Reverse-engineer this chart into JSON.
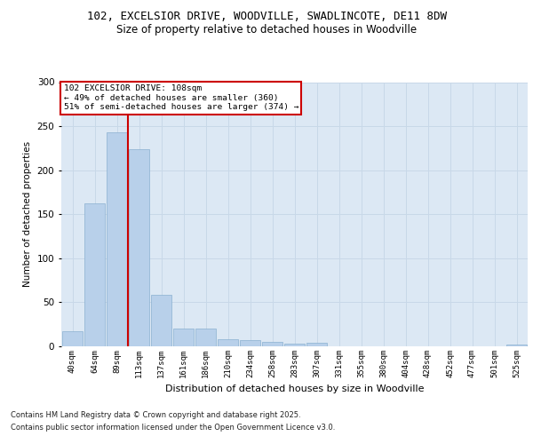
{
  "title_line1": "102, EXCELSIOR DRIVE, WOODVILLE, SWADLINCOTE, DE11 8DW",
  "title_line2": "Size of property relative to detached houses in Woodville",
  "xlabel": "Distribution of detached houses by size in Woodville",
  "ylabel": "Number of detached properties",
  "bar_labels": [
    "40sqm",
    "64sqm",
    "89sqm",
    "113sqm",
    "137sqm",
    "161sqm",
    "186sqm",
    "210sqm",
    "234sqm",
    "258sqm",
    "283sqm",
    "307sqm",
    "331sqm",
    "355sqm",
    "380sqm",
    "404sqm",
    "428sqm",
    "452sqm",
    "477sqm",
    "501sqm",
    "525sqm"
  ],
  "bar_values": [
    17,
    162,
    243,
    224,
    58,
    20,
    20,
    8,
    7,
    5,
    3,
    4,
    0,
    0,
    0,
    0,
    0,
    0,
    0,
    0,
    2
  ],
  "bar_color": "#b8d0ea",
  "bar_edge_color": "#8ab0d0",
  "grid_color": "#c8d8e8",
  "background_color": "#dce8f4",
  "vline_color": "#cc0000",
  "vline_position": 2.5,
  "annotation_title": "102 EXCELSIOR DRIVE: 108sqm",
  "annotation_line1": "← 49% of detached houses are smaller (360)",
  "annotation_line2": "51% of semi-detached houses are larger (374) →",
  "annotation_box_facecolor": "#ffffff",
  "annotation_border_color": "#cc0000",
  "ylim": [
    0,
    300
  ],
  "yticks": [
    0,
    50,
    100,
    150,
    200,
    250,
    300
  ],
  "footer_line1": "Contains HM Land Registry data © Crown copyright and database right 2025.",
  "footer_line2": "Contains public sector information licensed under the Open Government Licence v3.0."
}
